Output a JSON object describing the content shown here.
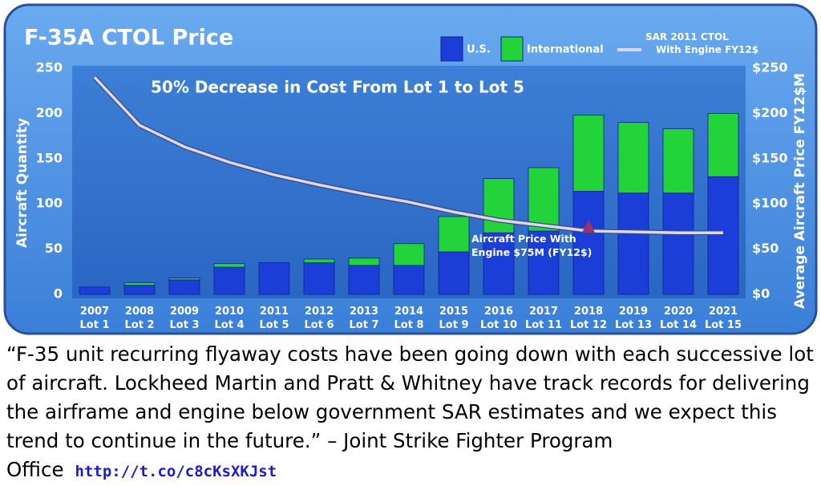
{
  "chart_data": {
    "type": "bar",
    "stacked": true,
    "title": "F-35A CTOL Price",
    "annotation": "50% Decrease in Cost From Lot 1 to Lot 5",
    "marker_annotation": [
      "Aircraft Price With",
      "Engine $75M (FY12$)"
    ],
    "ylabel": "Aircraft Quantity",
    "y2label": "Average Aircraft Price FY12$M",
    "categories": [
      [
        "2007",
        "Lot 1"
      ],
      [
        "2008",
        "Lot 2"
      ],
      [
        "2009",
        "Lot 3"
      ],
      [
        "2010",
        "Lot 4"
      ],
      [
        "2011",
        "Lot 5"
      ],
      [
        "2012",
        "Lot 6"
      ],
      [
        "2013",
        "Lot 7"
      ],
      [
        "2014",
        "Lot 8"
      ],
      [
        "2015",
        "Lot 9"
      ],
      [
        "2016",
        "Lot 10"
      ],
      [
        "2017",
        "Lot 11"
      ],
      [
        "2018",
        "Lot 12"
      ],
      [
        "2019",
        "Lot 13"
      ],
      [
        "2020",
        "Lot 14"
      ],
      [
        "2021",
        "Lot 15"
      ]
    ],
    "series": [
      {
        "name": "U.S.",
        "color": "#1c3ed8",
        "values": [
          8,
          10,
          16,
          30,
          35,
          35,
          32,
          32,
          47,
          68,
          70,
          114,
          112,
          112,
          130
        ]
      },
      {
        "name": "International",
        "color": "#22d43a",
        "values": [
          0,
          3,
          2,
          4,
          0,
          4,
          8,
          24,
          39,
          60,
          70,
          84,
          78,
          71,
          70
        ]
      },
      {
        "name": [
          "SAR 2011 CTOL",
          "With Engine FY12$"
        ],
        "type": "line",
        "axis": "y2",
        "color": "#ddd6ee",
        "values": [
          240,
          187,
          163,
          146,
          132,
          121,
          111,
          102,
          91,
          82,
          76,
          70,
          69,
          68,
          68
        ]
      }
    ],
    "marker_index": 11,
    "ylim": [
      0,
      250
    ],
    "yticks": [
      0,
      50,
      100,
      150,
      200,
      250
    ],
    "y2lim": [
      0,
      250
    ],
    "y2ticks": [
      {
        "value": 0,
        "label": "$0"
      },
      {
        "value": 50,
        "label": "$50"
      },
      {
        "value": 100,
        "label": "$100"
      },
      {
        "value": 150,
        "label": "$150"
      },
      {
        "value": 200,
        "label": "$200"
      },
      {
        "value": 250,
        "label": "$250"
      }
    ]
  },
  "quote": "“F-35 unit recurring flyaway costs have been going down with each successive lot of aircraft. Lockheed Martin and Pratt & Whitney have track records for delivering the airframe and engine below government SAR estimates and we expect this trend to continue in the future.” – Joint Strike Fighter Program Office",
  "url": "http://t.co/c8cKsXKJst"
}
